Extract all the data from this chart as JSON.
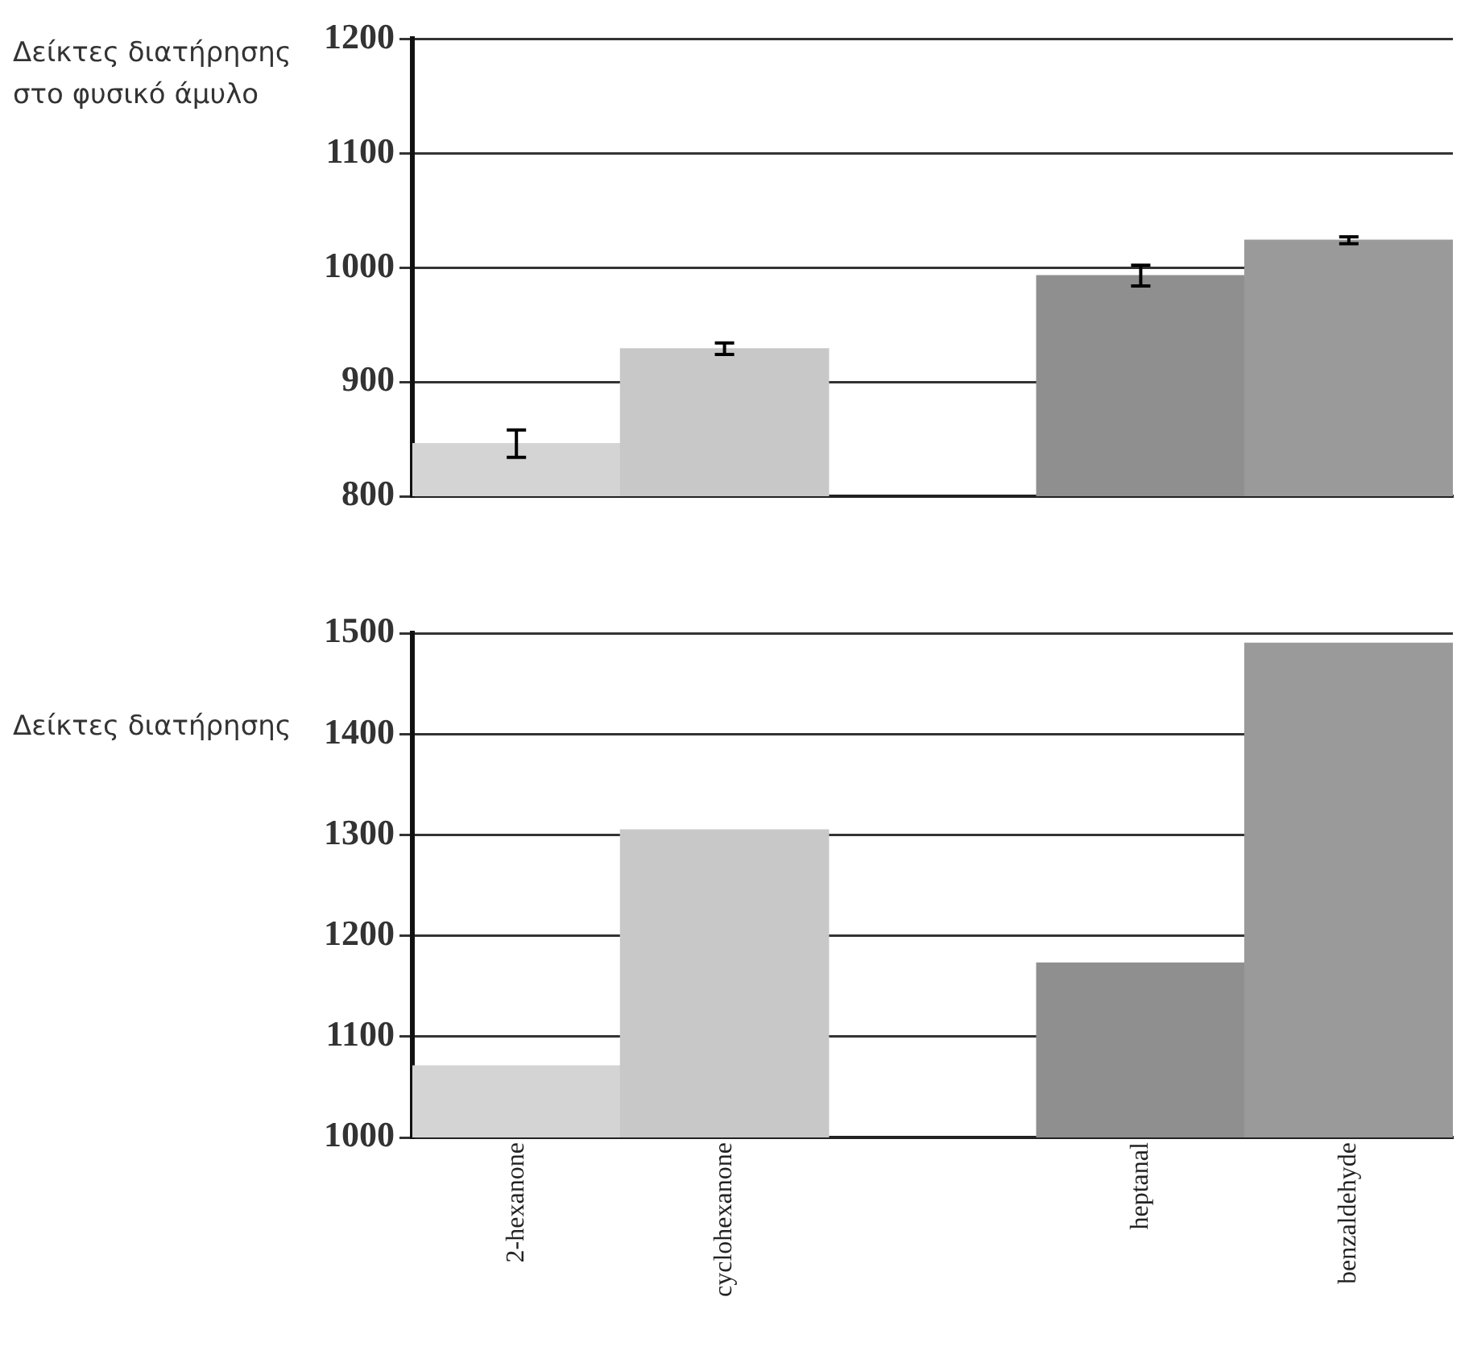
{
  "chart_data": [
    {
      "type": "bar",
      "ylabel": "Δείκτες διατήρησης στο φυσικό άμυλο",
      "categories": [
        null,
        null,
        null,
        null,
        null
      ],
      "values": [
        846,
        929,
        null,
        993,
        1024
      ],
      "errors": [
        12,
        5,
        null,
        9,
        3
      ],
      "colors": [
        "#d4d4d4",
        "#c8c8c8",
        "#ffffff",
        "#8f8f8f",
        "#9a9a9a"
      ],
      "ylim": [
        800,
        1200
      ],
      "yticks": [
        800,
        900,
        1000,
        1100,
        1200
      ],
      "grid": "y",
      "tick_labels": "y"
    },
    {
      "type": "bar",
      "ylabel": "Δείκτες διατήρησης",
      "categories": [
        "2-hexanone",
        "cyclohexanone",
        null,
        "heptanal",
        "benzaldehyde"
      ],
      "values": [
        1071,
        1305,
        null,
        1173,
        1490
      ],
      "colors": [
        "#d4d4d4",
        "#c8c8c8",
        "#ffffff",
        "#8f8f8f",
        "#9a9a9a"
      ],
      "ylim": [
        1000,
        1500
      ],
      "yticks": [
        1000,
        1100,
        1200,
        1300,
        1400,
        1500
      ],
      "grid": "y"
    }
  ]
}
